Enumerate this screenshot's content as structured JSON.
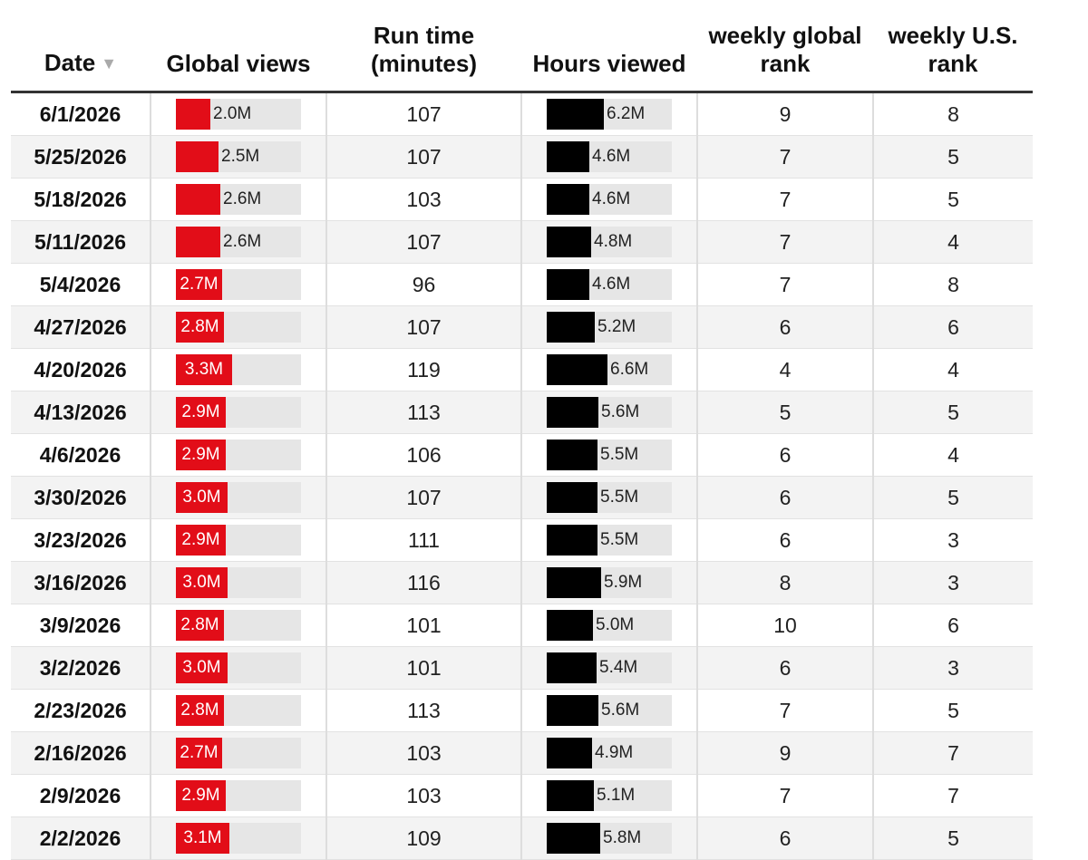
{
  "table": {
    "headers": {
      "date": "Date",
      "global_views": "Global views",
      "run_time": "Run time (minutes)",
      "hours_viewed": "Hours viewed",
      "global_rank": "weekly global rank",
      "us_rank": "weekly U.S. rank"
    },
    "sort_icon": "sort-descending-icon"
  },
  "chart_data": {
    "type": "table",
    "columns": [
      "Date",
      "Global views",
      "Run time (minutes)",
      "Hours viewed",
      "weekly global rank",
      "weekly U.S. rank"
    ],
    "colors": {
      "global_views_bar": "#e20d18",
      "hours_viewed_bar": "#000000",
      "bar_track": "#e6e6e6"
    },
    "rows": [
      {
        "date": "6/1/2026",
        "views": 2.0,
        "views_label": "2.0M",
        "runtime": 107,
        "hours": 6.2,
        "hours_label": "6.2M",
        "global_rank": 9,
        "us_rank": 8
      },
      {
        "date": "5/25/2026",
        "views": 2.5,
        "views_label": "2.5M",
        "runtime": 107,
        "hours": 4.6,
        "hours_label": "4.6M",
        "global_rank": 7,
        "us_rank": 5
      },
      {
        "date": "5/18/2026",
        "views": 2.6,
        "views_label": "2.6M",
        "runtime": 103,
        "hours": 4.6,
        "hours_label": "4.6M",
        "global_rank": 7,
        "us_rank": 5
      },
      {
        "date": "5/11/2026",
        "views": 2.6,
        "views_label": "2.6M",
        "runtime": 107,
        "hours": 4.8,
        "hours_label": "4.8M",
        "global_rank": 7,
        "us_rank": 4
      },
      {
        "date": "5/4/2026",
        "views": 2.7,
        "views_label": "2.7M",
        "runtime": 96,
        "hours": 4.6,
        "hours_label": "4.6M",
        "global_rank": 7,
        "us_rank": 8
      },
      {
        "date": "4/27/2026",
        "views": 2.8,
        "views_label": "2.8M",
        "runtime": 107,
        "hours": 5.2,
        "hours_label": "5.2M",
        "global_rank": 6,
        "us_rank": 6
      },
      {
        "date": "4/20/2026",
        "views": 3.3,
        "views_label": "3.3M",
        "runtime": 119,
        "hours": 6.6,
        "hours_label": "6.6M",
        "global_rank": 4,
        "us_rank": 4
      },
      {
        "date": "4/13/2026",
        "views": 2.9,
        "views_label": "2.9M",
        "runtime": 113,
        "hours": 5.6,
        "hours_label": "5.6M",
        "global_rank": 5,
        "us_rank": 5
      },
      {
        "date": "4/6/2026",
        "views": 2.9,
        "views_label": "2.9M",
        "runtime": 106,
        "hours": 5.5,
        "hours_label": "5.5M",
        "global_rank": 6,
        "us_rank": 4
      },
      {
        "date": "3/30/2026",
        "views": 3.0,
        "views_label": "3.0M",
        "runtime": 107,
        "hours": 5.5,
        "hours_label": "5.5M",
        "global_rank": 6,
        "us_rank": 5
      },
      {
        "date": "3/23/2026",
        "views": 2.9,
        "views_label": "2.9M",
        "runtime": 111,
        "hours": 5.5,
        "hours_label": "5.5M",
        "global_rank": 6,
        "us_rank": 3
      },
      {
        "date": "3/16/2026",
        "views": 3.0,
        "views_label": "3.0M",
        "runtime": 116,
        "hours": 5.9,
        "hours_label": "5.9M",
        "global_rank": 8,
        "us_rank": 3
      },
      {
        "date": "3/9/2026",
        "views": 2.8,
        "views_label": "2.8M",
        "runtime": 101,
        "hours": 5.0,
        "hours_label": "5.0M",
        "global_rank": 10,
        "us_rank": 6
      },
      {
        "date": "3/2/2026",
        "views": 3.0,
        "views_label": "3.0M",
        "runtime": 101,
        "hours": 5.4,
        "hours_label": "5.4M",
        "global_rank": 6,
        "us_rank": 3
      },
      {
        "date": "2/23/2026",
        "views": 2.8,
        "views_label": "2.8M",
        "runtime": 113,
        "hours": 5.6,
        "hours_label": "5.6M",
        "global_rank": 7,
        "us_rank": 5
      },
      {
        "date": "2/16/2026",
        "views": 2.7,
        "views_label": "2.7M",
        "runtime": 103,
        "hours": 4.9,
        "hours_label": "4.9M",
        "global_rank": 9,
        "us_rank": 7
      },
      {
        "date": "2/9/2026",
        "views": 2.9,
        "views_label": "2.9M",
        "runtime": 103,
        "hours": 5.1,
        "hours_label": "5.1M",
        "global_rank": 7,
        "us_rank": 7
      },
      {
        "date": "2/2/2026",
        "views": 3.1,
        "views_label": "3.1M",
        "runtime": 109,
        "hours": 5.8,
        "hours_label": "5.8M",
        "global_rank": 6,
        "us_rank": 5
      }
    ]
  }
}
